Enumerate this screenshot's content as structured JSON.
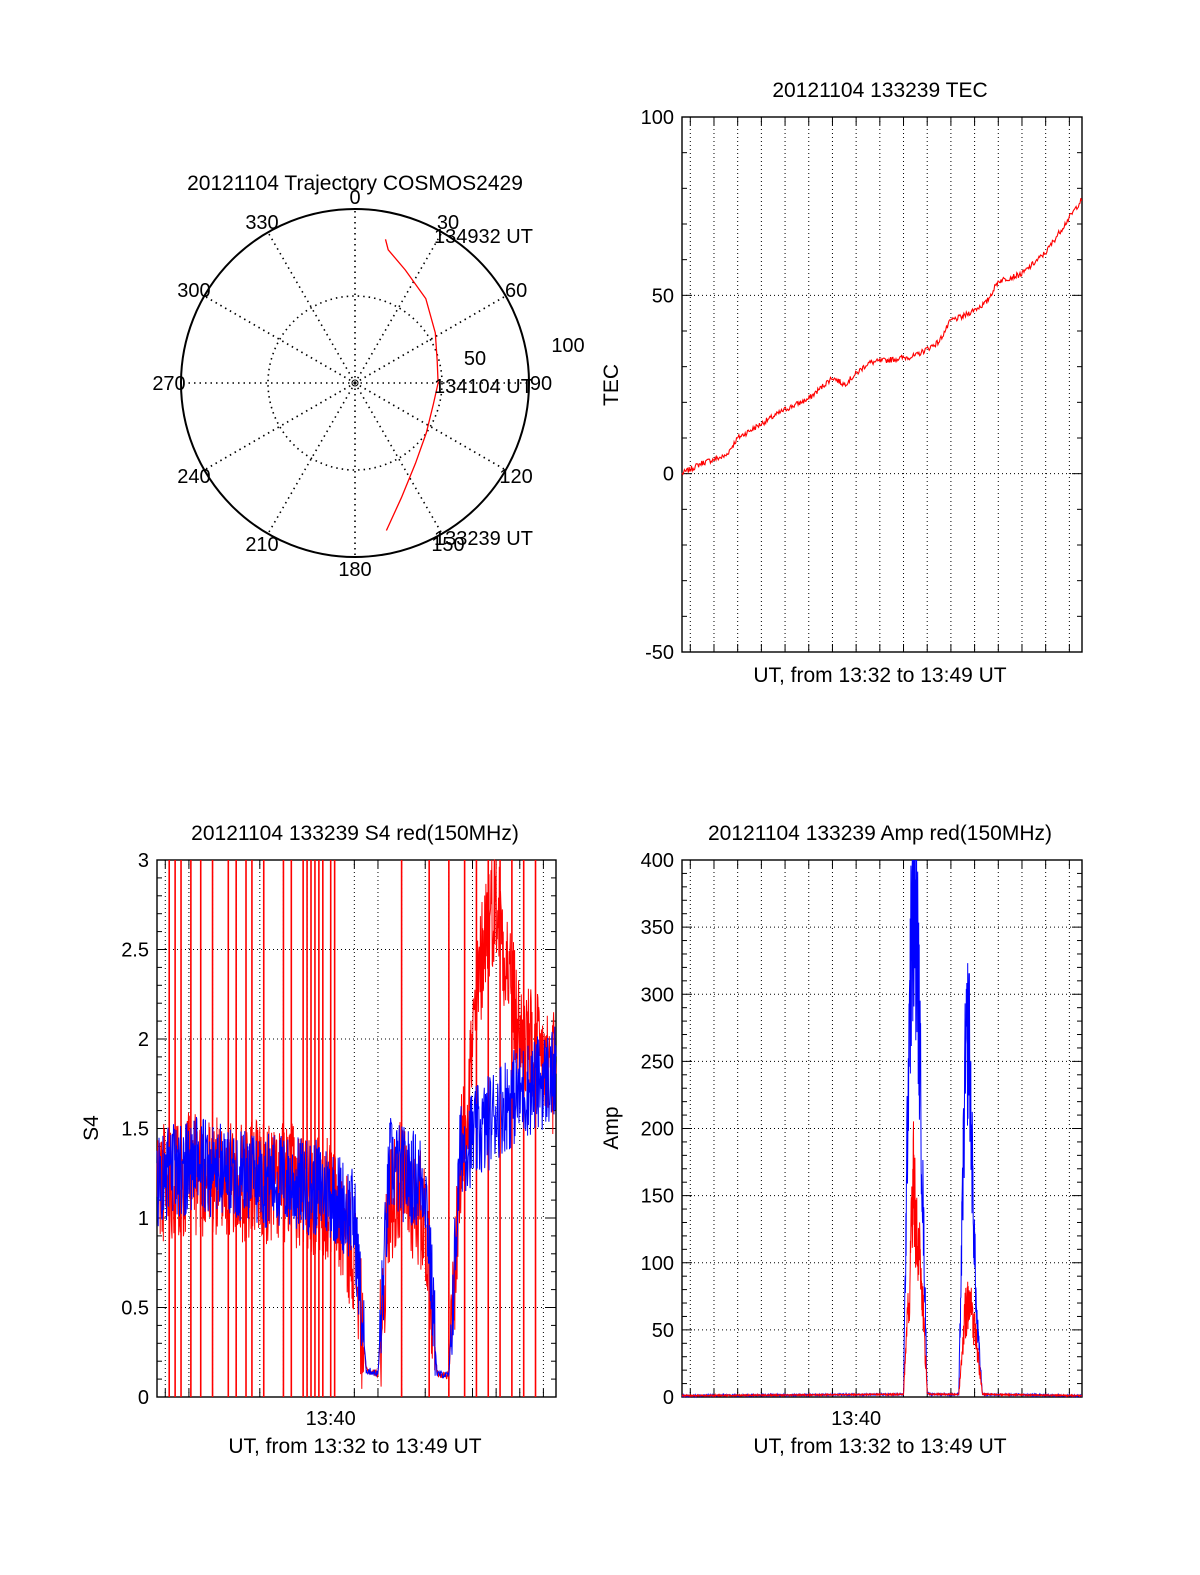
{
  "colors": {
    "red": "#ff0000",
    "blue": "#0000ff",
    "axis": "#000000",
    "grid": "#000000",
    "background": "#ffffff"
  },
  "chart_data": [
    {
      "id": "trajectory",
      "type": "polar",
      "title": "20121104 Trajectory COSMOS2429",
      "angle_labels": [
        "0",
        "30",
        "60",
        "90",
        "120",
        "150",
        "180",
        "210",
        "240",
        "270",
        "300",
        "330"
      ],
      "radial_labels": [
        "50",
        "100"
      ],
      "rlim": [
        0,
        100
      ],
      "grid": true,
      "series": [
        {
          "color": "red",
          "points": [
            {
              "az": 168,
              "el": 12
            },
            {
              "az": 158,
              "el": 26
            },
            {
              "az": 143,
              "el": 38
            },
            {
              "az": 125,
              "el": 45
            },
            {
              "az": 105,
              "el": 48
            },
            {
              "az": 90,
              "el": 47
            },
            {
              "az": 75,
              "el": 46
            },
            {
              "az": 58,
              "el": 41
            },
            {
              "az": 40,
              "el": 33
            },
            {
              "az": 24,
              "el": 26
            },
            {
              "az": 14,
              "el": 19
            },
            {
              "az": 12,
              "el": 14
            }
          ]
        }
      ],
      "annotations": [
        {
          "text": "134932 UT"
        },
        {
          "text": "134104 UT"
        },
        {
          "text": "133239 UT"
        }
      ]
    },
    {
      "id": "tec",
      "type": "line",
      "title": "20121104 133239 TEC",
      "xlabel": "UT, from 13:32 to 13:49 UT",
      "ylabel": "TEC",
      "xlim": [
        "13:32:39",
        "13:49:32"
      ],
      "ylim": [
        -50,
        100
      ],
      "yticks": [
        "100",
        "50",
        "0",
        "-50"
      ],
      "grid": true,
      "series": [
        {
          "color": "red",
          "x": [
            "13:32:39",
            "13:33:30",
            "13:34:30",
            "13:35:00",
            "13:36:00",
            "13:37:00",
            "13:38:00",
            "13:38:30",
            "13:39:00",
            "13:39:30",
            "13:40:30",
            "13:41:30",
            "13:42:30",
            "13:43:30",
            "13:44:00",
            "13:44:30",
            "13:45:30",
            "13:46:00",
            "13:47:00",
            "13:48:00",
            "13:49:32"
          ],
          "y": [
            0,
            3,
            5,
            10,
            14,
            18,
            21,
            24,
            27,
            25,
            31,
            32,
            33,
            37,
            43,
            44,
            48,
            54,
            56,
            62,
            77
          ]
        }
      ]
    },
    {
      "id": "s4",
      "type": "line",
      "title": "20121104 133239 S4 red(150MHz)",
      "xlabel": "UT, from 13:32 to 13:49 UT",
      "ylabel": "S4",
      "xlim": [
        "13:32:39",
        "13:49:32"
      ],
      "ylim": [
        0,
        3
      ],
      "yticks": [
        "3",
        "2.5",
        "2",
        "1.5",
        "1",
        "0.5",
        "0"
      ],
      "xticks": [
        "13:40"
      ],
      "grid": true,
      "series": [
        {
          "color": "red",
          "x": [
            "13:32:39",
            "13:34:00",
            "13:36:00",
            "13:38:00",
            "13:40:00",
            "13:41:00",
            "13:41:30",
            "13:42:00",
            "13:42:30",
            "13:43:00",
            "13:44:00",
            "13:44:30",
            "13:45:00",
            "13:45:30",
            "13:46:30",
            "13:47:00",
            "13:48:00",
            "13:49:32"
          ],
          "y": [
            1.2,
            1.25,
            1.2,
            1.2,
            1.1,
            0.8,
            0.15,
            0.13,
            1.1,
            1.2,
            1.0,
            0.13,
            0.12,
            1.3,
            2.6,
            2.8,
            2.0,
            1.8
          ]
        },
        {
          "color": "blue",
          "x": [
            "13:32:39",
            "13:34:00",
            "13:36:00",
            "13:38:00",
            "13:40:00",
            "13:41:00",
            "13:41:30",
            "13:42:00",
            "13:42:30",
            "13:43:00",
            "13:44:00",
            "13:44:30",
            "13:45:00",
            "13:45:30",
            "13:46:30",
            "13:47:00",
            "13:48:00",
            "13:49:32"
          ],
          "y": [
            1.2,
            1.3,
            1.25,
            1.2,
            1.15,
            1.0,
            0.15,
            0.13,
            1.3,
            1.25,
            1.2,
            0.13,
            0.12,
            1.4,
            1.5,
            1.6,
            1.7,
            1.8
          ]
        }
      ],
      "spikes_red": [
        "13:33:10",
        "13:33:25",
        "13:33:40",
        "13:34:05",
        "13:34:30",
        "13:35:00",
        "13:35:40",
        "13:36:00",
        "13:36:25",
        "13:36:40",
        "13:37:10",
        "13:38:00",
        "13:38:20",
        "13:38:50",
        "13:39:00",
        "13:39:10",
        "13:39:20",
        "13:39:30",
        "13:39:40",
        "13:40:00",
        "13:40:10",
        "13:43:00",
        "13:44:10",
        "13:45:00",
        "13:45:40",
        "13:46:10",
        "13:46:40",
        "13:47:10",
        "13:47:40",
        "13:48:10",
        "13:48:40"
      ]
    },
    {
      "id": "amp",
      "type": "line",
      "title": "20121104 133239 Amp red(150MHz)",
      "xlabel": "UT, from 13:32 to 13:49 UT",
      "ylabel": "Amp",
      "xlim": [
        "13:32:39",
        "13:49:32"
      ],
      "ylim": [
        0,
        400
      ],
      "yticks": [
        "400",
        "350",
        "300",
        "250",
        "200",
        "150",
        "100",
        "50",
        "0"
      ],
      "xticks": [
        "13:40"
      ],
      "grid": true,
      "series": [
        {
          "color": "blue",
          "x": [
            "13:32:39",
            "13:42:00",
            "13:42:15",
            "13:42:25",
            "13:42:35",
            "13:42:45",
            "13:43:00",
            "13:43:10",
            "13:44:20",
            "13:44:35",
            "13:44:45",
            "13:44:55",
            "13:45:05",
            "13:45:20",
            "13:49:32"
          ],
          "y": [
            1,
            2,
            300,
            360,
            340,
            200,
            3,
            2,
            2,
            230,
            280,
            160,
            60,
            2,
            1
          ]
        },
        {
          "color": "red",
          "x": [
            "13:32:39",
            "13:42:00",
            "13:42:15",
            "13:42:25",
            "13:42:35",
            "13:42:45",
            "13:43:00",
            "13:43:10",
            "13:44:20",
            "13:44:35",
            "13:44:45",
            "13:44:55",
            "13:45:05",
            "13:45:20",
            "13:49:32"
          ],
          "y": [
            1,
            2,
            80,
            160,
            120,
            90,
            3,
            2,
            2,
            60,
            70,
            60,
            40,
            2,
            1
          ]
        }
      ]
    }
  ]
}
